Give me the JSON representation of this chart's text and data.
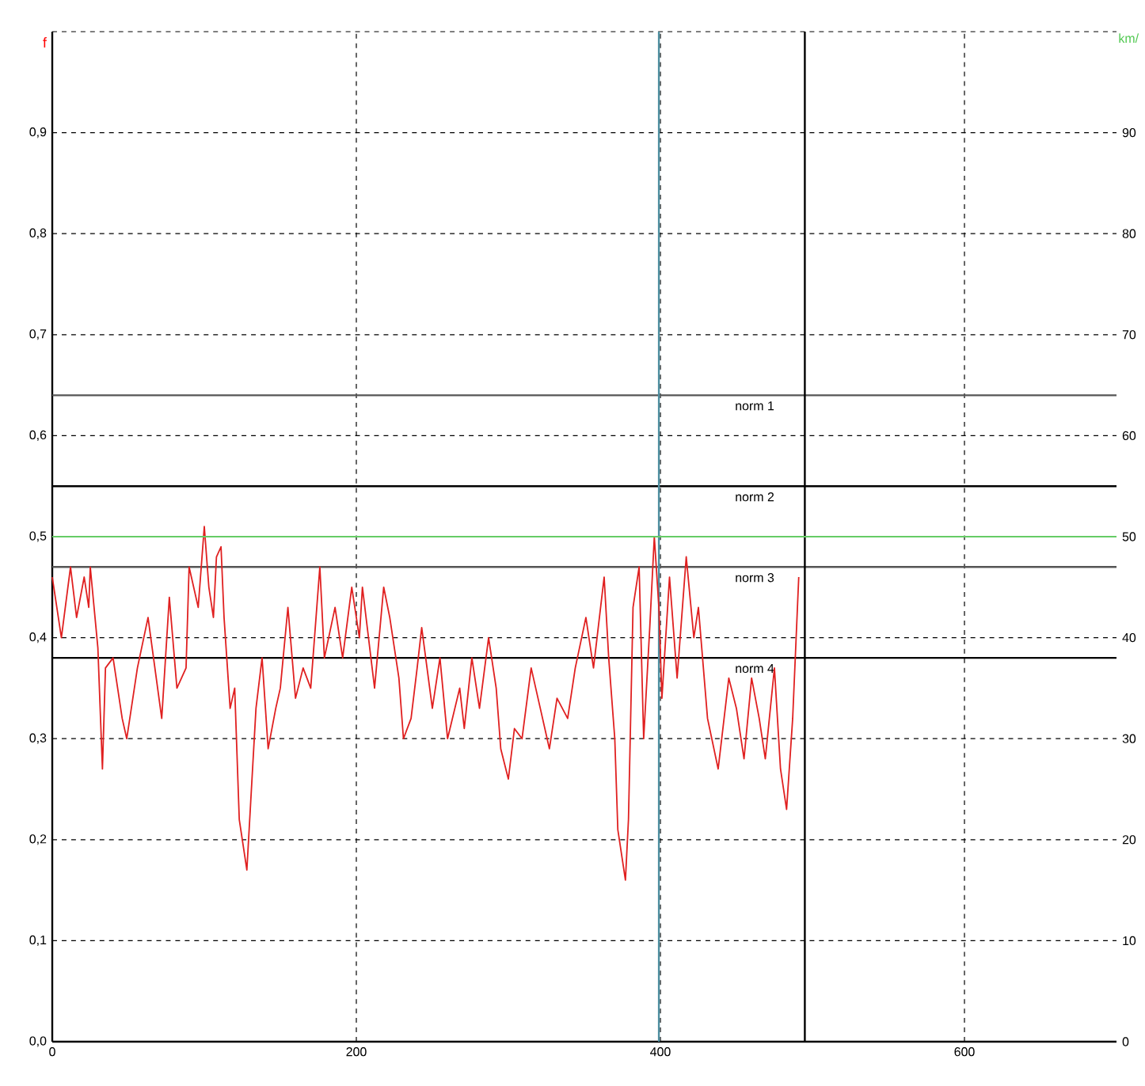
{
  "chart_data": {
    "type": "line",
    "ylabel": "f",
    "y2label": "km/",
    "xlim": [
      0,
      700
    ],
    "xticks": [
      0,
      200,
      400,
      600
    ],
    "ylim": [
      0,
      1
    ],
    "yticks": [
      {
        "value": 0,
        "label": "0,0"
      },
      {
        "value": 0.1,
        "label": "0,1"
      },
      {
        "value": 0.2,
        "label": "0,2"
      },
      {
        "value": 0.3,
        "label": "0,3"
      },
      {
        "value": 0.4,
        "label": "0,4"
      },
      {
        "value": 0.5,
        "label": "0,5"
      },
      {
        "value": 0.6,
        "label": "0,6"
      },
      {
        "value": 0.7,
        "label": "0,7"
      },
      {
        "value": 0.8,
        "label": "0,8"
      },
      {
        "value": 0.9,
        "label": "0,9"
      },
      {
        "value": 1,
        "label": null
      }
    ],
    "y2lim": [
      0,
      100
    ],
    "y2ticks": [
      0,
      10,
      20,
      30,
      40,
      50,
      60,
      70,
      80,
      90
    ],
    "grid": true,
    "marker": "none",
    "line_style": "solid",
    "ref_lines": [
      {
        "axis": "y",
        "value": 0.64,
        "label": "norm 1",
        "color": "#555555"
      },
      {
        "axis": "y",
        "value": 0.55,
        "label": "norm 2",
        "color": "#000000"
      },
      {
        "axis": "y",
        "value": 0.47,
        "label": "norm 3",
        "color": "#555555"
      },
      {
        "axis": "y",
        "value": 0.38,
        "label": "norm 4",
        "color": "#000000"
      },
      {
        "axis": "y2",
        "value": 50,
        "color": "#66cc66"
      },
      {
        "axis": "x",
        "value": 399,
        "color": "#4f8fa0"
      },
      {
        "axis": "x",
        "value": 495,
        "color": "#000000"
      }
    ],
    "series": [
      {
        "color": "#e02020",
        "x": [
          0,
          6,
          12,
          16,
          21,
          24,
          25,
          30,
          33,
          35,
          40,
          46,
          49,
          52,
          56,
          63,
          72,
          77,
          82,
          88,
          90,
          96,
          100,
          103,
          106,
          108,
          111,
          113,
          117,
          120,
          123,
          128,
          134,
          138,
          142,
          147,
          150,
          155,
          160,
          165,
          170,
          176,
          179,
          186,
          191,
          197,
          202,
          204,
          212,
          218,
          222,
          228,
          231,
          236,
          240,
          243,
          250,
          255,
          260,
          268,
          271,
          276,
          281,
          287,
          292,
          295,
          300,
          304,
          309,
          315,
          321,
          327,
          332,
          339,
          344,
          351,
          356,
          363,
          366,
          370,
          372,
          377,
          379,
          382,
          386,
          389,
          393,
          396,
          399,
          401,
          406,
          411,
          417,
          422,
          425,
          431,
          438,
          445,
          450,
          455,
          460,
          465,
          469,
          475,
          479,
          483,
          487,
          491
        ],
        "values": [
          0.46,
          0.4,
          0.47,
          0.42,
          0.46,
          0.43,
          0.47,
          0.39,
          0.27,
          0.37,
          0.38,
          0.32,
          0.3,
          0.33,
          0.37,
          0.42,
          0.32,
          0.44,
          0.35,
          0.37,
          0.47,
          0.43,
          0.51,
          0.45,
          0.42,
          0.48,
          0.49,
          0.42,
          0.33,
          0.35,
          0.22,
          0.17,
          0.33,
          0.38,
          0.29,
          0.33,
          0.35,
          0.43,
          0.34,
          0.37,
          0.35,
          0.47,
          0.38,
          0.43,
          0.38,
          0.45,
          0.4,
          0.45,
          0.35,
          0.45,
          0.42,
          0.36,
          0.3,
          0.32,
          0.37,
          0.41,
          0.33,
          0.38,
          0.3,
          0.35,
          0.31,
          0.38,
          0.33,
          0.4,
          0.35,
          0.29,
          0.26,
          0.31,
          0.3,
          0.37,
          0.33,
          0.29,
          0.34,
          0.32,
          0.37,
          0.42,
          0.37,
          0.46,
          0.38,
          0.3,
          0.21,
          0.16,
          0.22,
          0.43,
          0.47,
          0.3,
          0.41,
          0.5,
          0.43,
          0.34,
          0.46,
          0.36,
          0.48,
          0.4,
          0.43,
          0.32,
          0.27,
          0.36,
          0.33,
          0.28,
          0.36,
          0.32,
          0.28,
          0.37,
          0.27,
          0.23,
          0.32,
          0.46
        ]
      }
    ]
  }
}
